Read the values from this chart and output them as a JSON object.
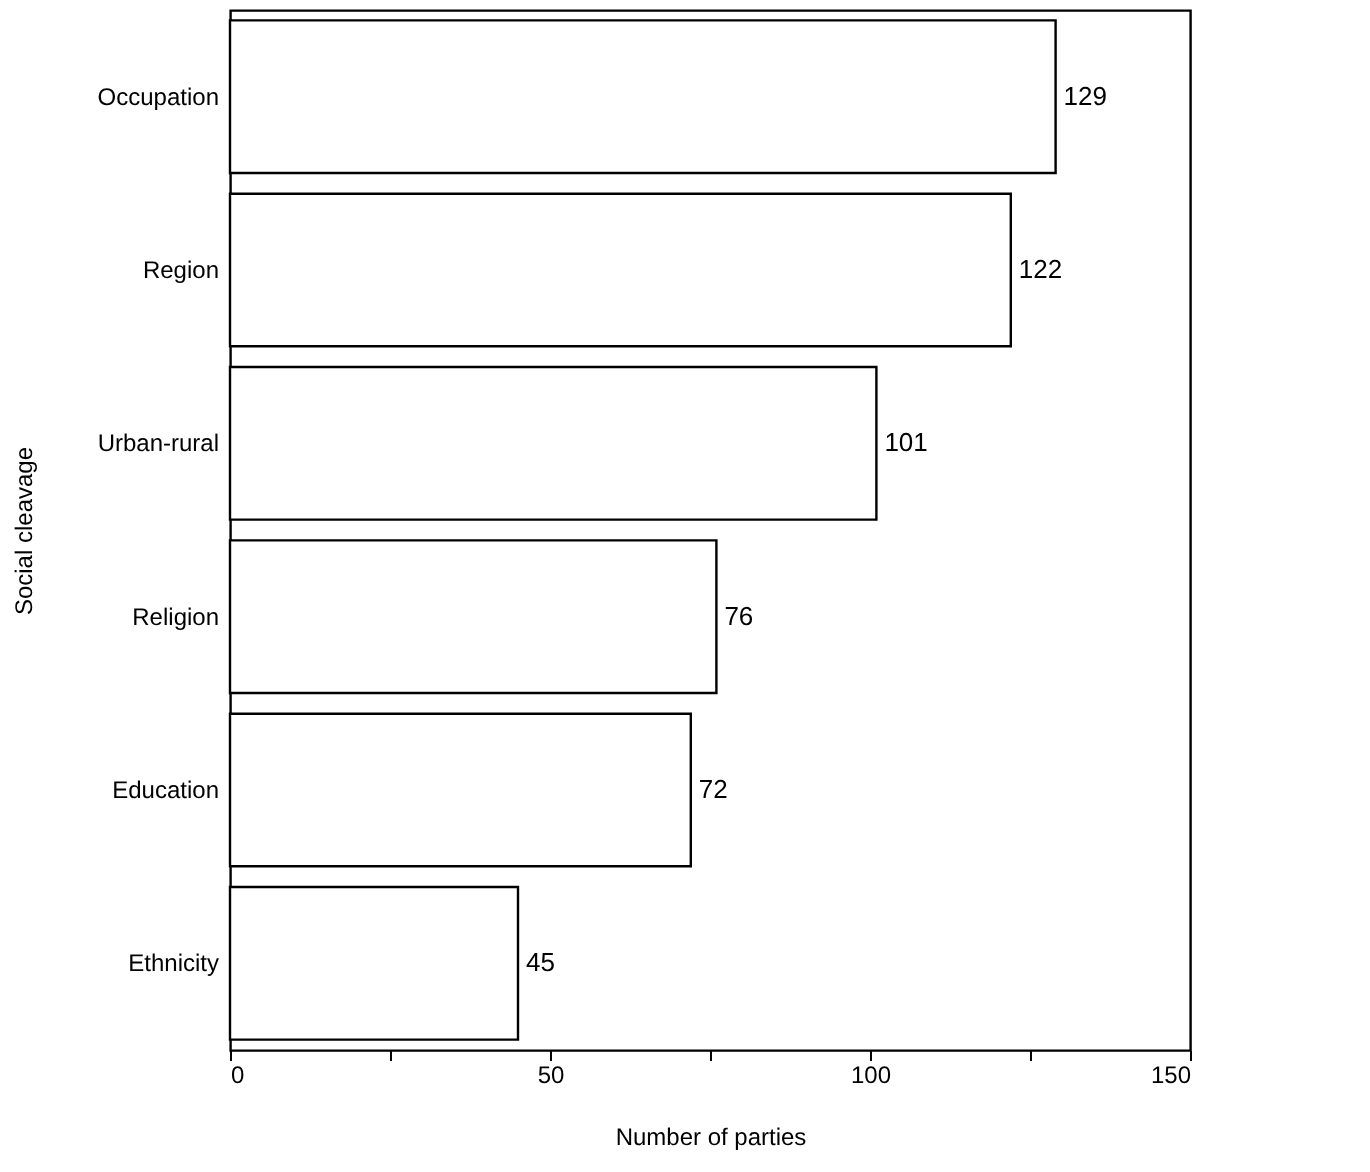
{
  "chart_data": {
    "type": "bar",
    "orientation": "horizontal",
    "xlabel": "Number of parties",
    "ylabel": "Social cleavage",
    "categories": [
      "Occupation",
      "Region",
      "Urban-rural",
      "Religion",
      "Education",
      "Ethnicity"
    ],
    "values": [
      129,
      122,
      101,
      76,
      72,
      45
    ],
    "color": "#ffffff",
    "xlim": [
      0,
      150
    ],
    "xticks": [
      0,
      {
        "value": 25,
        "label": null
      },
      50,
      {
        "value": 75,
        "label": null
      },
      100,
      {
        "value": 125,
        "label": null
      },
      150
    ],
    "data_labels": true
  }
}
